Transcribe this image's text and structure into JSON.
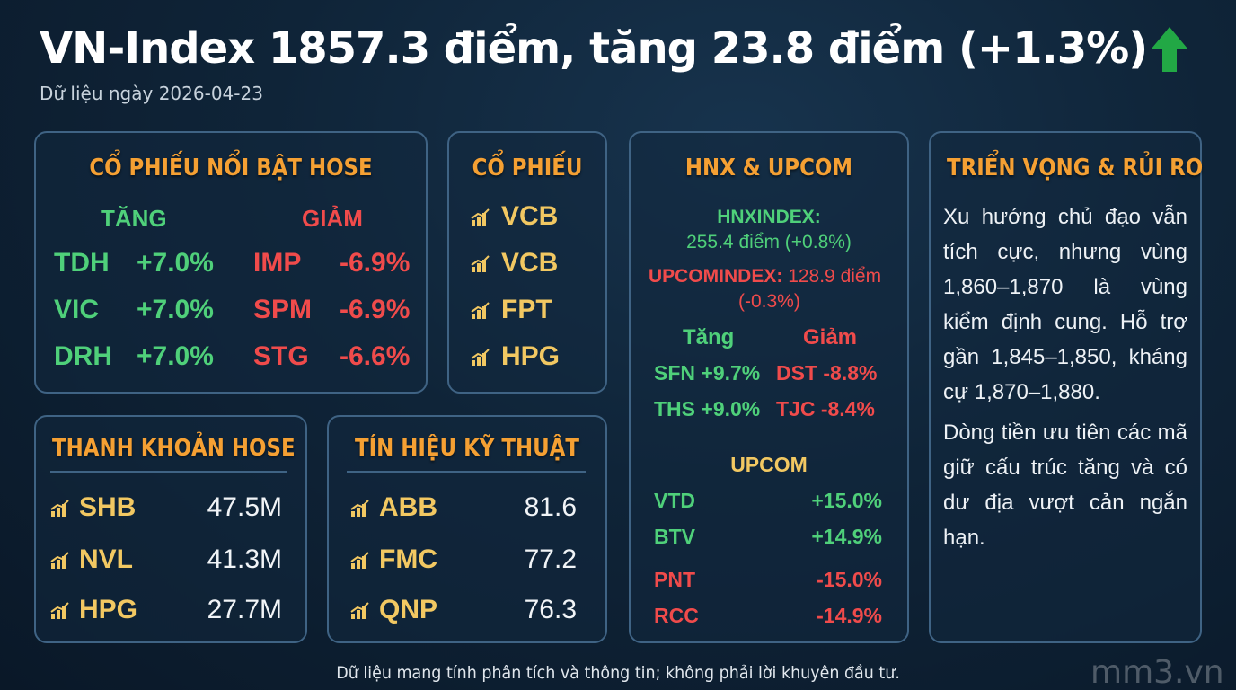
{
  "header": {
    "title": "VN-Index 1857.3 điểm, tăng 23.8 điểm (+1.3%)",
    "arrow_icon": "up-arrow-icon",
    "arrow_color": "#22a845",
    "date_line": "Dữ liệu ngày 2026-04-23"
  },
  "hose_highlights": {
    "title": "CỔ PHIẾU NỔI BẬT HOSE",
    "up_label": "TĂNG",
    "down_label": "GIẢM",
    "gainers": [
      {
        "ticker": "TDH",
        "change": "+7.0%"
      },
      {
        "ticker": "VIC",
        "change": "+7.0%"
      },
      {
        "ticker": "DRH",
        "change": "+7.0%"
      }
    ],
    "losers": [
      {
        "ticker": "IMP",
        "change": "-6.9%"
      },
      {
        "ticker": "SPM",
        "change": "-6.9%"
      },
      {
        "ticker": "STG",
        "change": "-6.6%"
      }
    ]
  },
  "stocks": {
    "title": "CỔ PHIẾU",
    "items": [
      "VCB",
      "VCB",
      "FPT",
      "HPG"
    ]
  },
  "hnx_upcom": {
    "title": "HNX & UPCOM",
    "hnx_label": "HNXINDEX:",
    "hnx_value": "255.4 điểm (+0.8%)",
    "upcom_label": "UPCOMINDEX:",
    "upcom_value_1": "128.9 điểm",
    "upcom_value_2": "(-0.3%)",
    "up_label": "Tăng",
    "down_label": "Giảm",
    "hnx_rows": [
      {
        "up_ticker": "SFN",
        "up_change": "+9.7%",
        "down_ticker": "DST",
        "down_change": "-8.8%"
      },
      {
        "up_ticker": "THS",
        "up_change": "+9.0%",
        "down_ticker": "TJC",
        "down_change": "-8.4%"
      }
    ],
    "upcom_title": "UPCOM",
    "upcom_gainers": [
      {
        "ticker": "VTD",
        "change": "+15.0%"
      },
      {
        "ticker": "BTV",
        "change": "+14.9%"
      }
    ],
    "upcom_losers": [
      {
        "ticker": "PNT",
        "change": "-15.0%"
      },
      {
        "ticker": "RCC",
        "change": "-14.9%"
      }
    ]
  },
  "outlook": {
    "title": "TRIỂN VỌNG & RỦI RO",
    "paragraph_1": "Xu hướng chủ đạo vẫn tích cực, nhưng vùng 1,860–1,870 là vùng kiểm định cung. Hỗ trợ gần 1,845–1,850, kháng cự 1,870–1,880.",
    "paragraph_2": "Dòng tiền ưu tiên các mã giữ cấu trúc tăng và có dư địa vượt cản ngắn hạn."
  },
  "liquidity": {
    "title": "THANH KHOẢN HOSE",
    "items": [
      {
        "ticker": "SHB",
        "value": "47.5M"
      },
      {
        "ticker": "NVL",
        "value": "41.3M"
      },
      {
        "ticker": "HPG",
        "value": "27.7M"
      }
    ]
  },
  "technical": {
    "title": "TÍN HIỆU KỸ THUẬT",
    "items": [
      {
        "ticker": "ABB",
        "value": "81.6"
      },
      {
        "ticker": "FMC",
        "value": "77.2"
      },
      {
        "ticker": "QNP",
        "value": "76.3"
      }
    ]
  },
  "footer": {
    "disclaimer": "Dữ liệu mang tính phân tích và thông tin; không phải lời khuyên đầu tư.",
    "watermark": "mm3.vn"
  },
  "colors": {
    "accent_title": "#f5a033",
    "up": "#4fd07a",
    "down": "#f04b4b",
    "ticker_gold": "#f2c862",
    "panel_border": "#3f6384"
  }
}
